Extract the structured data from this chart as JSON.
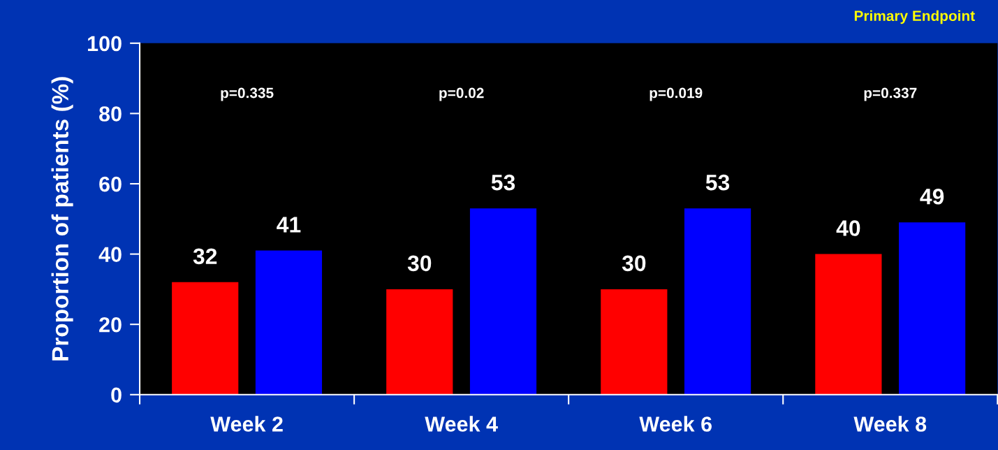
{
  "chart_data": {
    "type": "bar",
    "title": "Primary Endpoint",
    "ylabel": "Proportion of patients (%)",
    "categories": [
      "Week 2",
      "Week 4",
      "Week 6",
      "Week 8"
    ],
    "series": [
      {
        "color": "#ff0000",
        "values": [
          32,
          30,
          30,
          40
        ]
      },
      {
        "color": "#0000ff",
        "values": [
          41,
          53,
          53,
          49
        ]
      }
    ],
    "ylim": [
      0,
      100
    ],
    "yticks": [
      0,
      20,
      40,
      60,
      80,
      100
    ],
    "grid": false,
    "legend": false,
    "data_labels": true,
    "annotations": [
      "p=0.335",
      "p=0.02",
      "p=0.019",
      "p=0.337"
    ]
  }
}
